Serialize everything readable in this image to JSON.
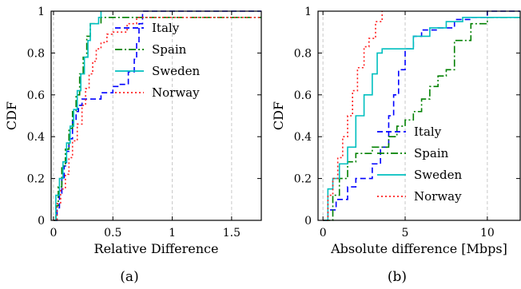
{
  "chart_data": [
    {
      "type": "line",
      "panel": "a",
      "caption": "(a)",
      "xlabel": "Relative Difference",
      "ylabel": "CDF",
      "xlim": [
        -0.02,
        1.75
      ],
      "ylim": [
        0,
        1
      ],
      "xticks": [
        0,
        0.5,
        1,
        1.5
      ],
      "xtick_labels": [
        "0",
        "0.5",
        "1",
        "1.5"
      ],
      "yticks": [
        0,
        0.2,
        0.4,
        0.6,
        0.8,
        1
      ],
      "ytick_labels": [
        "0",
        "0.2",
        "0.4",
        "0.6",
        "0.8",
        "1"
      ],
      "grid": "vertical dashed",
      "legend_position": "top-right",
      "series": [
        {
          "name": "Italy",
          "color": "#0000ff",
          "dash": "7 4",
          "x": [
            0,
            0.03,
            0.05,
            0.07,
            0.09,
            0.11,
            0.13,
            0.16,
            0.19,
            0.21,
            0.24,
            0.27,
            0.35,
            0.4,
            0.5,
            0.55,
            0.63,
            0.68,
            0.7,
            0.72,
            0.75,
            1.75
          ],
          "y": [
            0,
            0.06,
            0.13,
            0.2,
            0.26,
            0.33,
            0.39,
            0.48,
            0.52,
            0.55,
            0.58,
            0.58,
            0.58,
            0.61,
            0.64,
            0.65,
            0.71,
            0.77,
            0.85,
            0.94,
            1.0,
            1.0
          ]
        },
        {
          "name": "Spain",
          "color": "#008000",
          "dash": "9 3 2 3",
          "x": [
            0,
            0.02,
            0.04,
            0.07,
            0.1,
            0.13,
            0.16,
            0.19,
            0.22,
            0.25,
            0.28,
            0.31,
            0.34,
            0.4,
            0.5,
            0.6,
            0.75,
            1.75
          ],
          "y": [
            0,
            0.07,
            0.16,
            0.26,
            0.34,
            0.44,
            0.52,
            0.6,
            0.7,
            0.78,
            0.88,
            0.94,
            0.94,
            0.97,
            0.97,
            0.97,
            0.97,
            0.97
          ]
        },
        {
          "name": "Sweden",
          "color": "#00bfbf",
          "dash": "",
          "x": [
            0,
            0.02,
            0.05,
            0.08,
            0.11,
            0.14,
            0.17,
            0.2,
            0.23,
            0.26,
            0.29,
            0.31,
            0.34,
            0.38,
            0.4
          ],
          "y": [
            0,
            0.12,
            0.2,
            0.28,
            0.37,
            0.45,
            0.53,
            0.62,
            0.7,
            0.78,
            0.86,
            0.94,
            0.94,
            0.97,
            1.0
          ]
        },
        {
          "name": "Norway",
          "color": "#ff2020",
          "dash": "2 3",
          "x": [
            0,
            0.03,
            0.06,
            0.1,
            0.13,
            0.16,
            0.2,
            0.24,
            0.27,
            0.3,
            0.33,
            0.36,
            0.4,
            0.45,
            0.5,
            0.55,
            0.62,
            0.7,
            1.75
          ],
          "y": [
            0,
            0.08,
            0.15,
            0.22,
            0.3,
            0.38,
            0.46,
            0.55,
            0.63,
            0.7,
            0.76,
            0.82,
            0.85,
            0.89,
            0.9,
            0.9,
            0.94,
            0.97,
            0.97
          ]
        }
      ]
    },
    {
      "type": "line",
      "panel": "b",
      "caption": "(b)",
      "xlabel": "Absolute difference [Mbps]",
      "ylabel": "CDF",
      "xlim": [
        -0.3,
        12
      ],
      "ylim": [
        0,
        1
      ],
      "xticks": [
        0,
        5,
        10
      ],
      "xtick_labels": [
        "0",
        "5",
        "10"
      ],
      "yticks": [
        0,
        0.2,
        0.4,
        0.6,
        0.8,
        1
      ],
      "ytick_labels": [
        "0",
        "0.2",
        "0.4",
        "0.6",
        "0.8",
        "1"
      ],
      "grid": "vertical dashed",
      "legend_position": "lower-right",
      "series": [
        {
          "name": "Italy",
          "color": "#0000ff",
          "dash": "7 4",
          "x": [
            0,
            0.3,
            0.8,
            1.5,
            2.0,
            3.0,
            3.5,
            4.0,
            4.3,
            4.6,
            5.0,
            5.5,
            6.0,
            7.0,
            8.0,
            9.0,
            10.0,
            12.0
          ],
          "y": [
            0,
            0.05,
            0.1,
            0.16,
            0.2,
            0.27,
            0.35,
            0.5,
            0.6,
            0.72,
            0.82,
            0.88,
            0.91,
            0.92,
            0.96,
            0.97,
            1.0,
            1.0
          ]
        },
        {
          "name": "Spain",
          "color": "#008000",
          "dash": "9 3 2 3",
          "x": [
            0,
            0.6,
            1.0,
            1.5,
            2.0,
            3.0,
            4.0,
            4.5,
            5.0,
            5.5,
            6.0,
            6.5,
            7.0,
            7.5,
            8.0,
            9.0,
            10.0,
            12.0
          ],
          "y": [
            0,
            0.12,
            0.2,
            0.28,
            0.32,
            0.35,
            0.4,
            0.45,
            0.48,
            0.52,
            0.58,
            0.64,
            0.69,
            0.72,
            0.86,
            0.94,
            0.97,
            0.97
          ]
        },
        {
          "name": "Sweden",
          "color": "#00bfbf",
          "dash": "",
          "x": [
            0,
            0.3,
            0.6,
            1.0,
            1.5,
            2.0,
            2.5,
            3.0,
            3.3,
            3.6,
            4.5,
            5.5,
            6.5,
            7.5,
            8.5,
            9.5,
            10.0,
            12.0
          ],
          "y": [
            0,
            0.15,
            0.2,
            0.27,
            0.35,
            0.5,
            0.6,
            0.7,
            0.8,
            0.82,
            0.82,
            0.88,
            0.92,
            0.95,
            0.97,
            0.97,
            0.97,
            0.97
          ]
        },
        {
          "name": "Norway",
          "color": "#ff2020",
          "dash": "2 3",
          "x": [
            0,
            0.3,
            0.6,
            0.9,
            1.2,
            1.5,
            1.8,
            2.1,
            2.5,
            2.8,
            3.2,
            3.6
          ],
          "y": [
            0,
            0.12,
            0.2,
            0.3,
            0.4,
            0.5,
            0.62,
            0.73,
            0.83,
            0.87,
            0.95,
            1.0
          ]
        }
      ]
    }
  ]
}
